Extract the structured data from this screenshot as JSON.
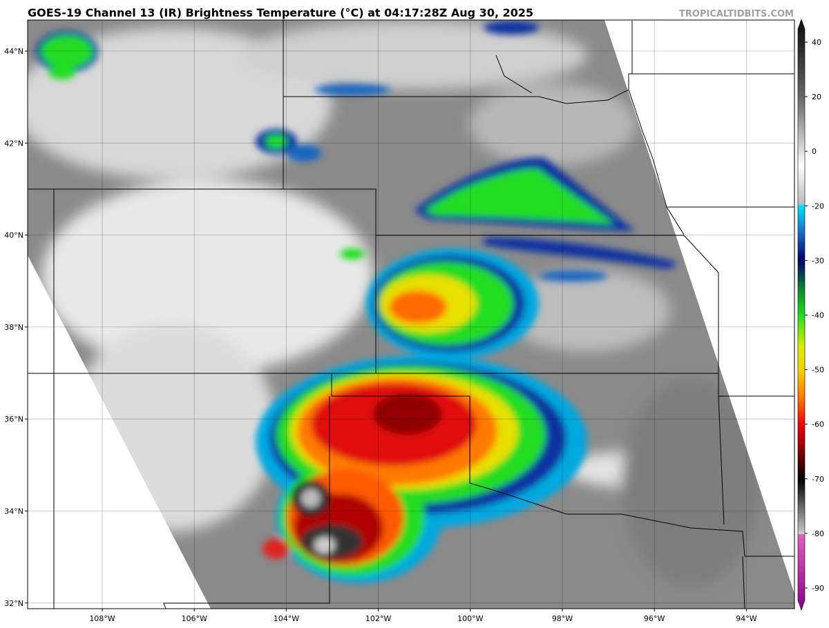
{
  "title": "GOES-19 Channel 13 (IR) Brightness Temperature (°C) at 04:17:28Z Aug 30, 2025",
  "credit": "TROPICALTIDBITS.COM",
  "map": {
    "lat_labels": [
      "44°N",
      "42°N",
      "40°N",
      "38°N",
      "36°N",
      "34°N",
      "32°N"
    ],
    "lon_labels": [
      "108°W",
      "106°W",
      "104°W",
      "102°W",
      "100°W",
      "98°W",
      "96°W",
      "94°W"
    ]
  },
  "colorbar": {
    "ticks": [
      40,
      20,
      0,
      -20,
      -30,
      -40,
      -50,
      -60,
      -70,
      -80,
      -90
    ]
  }
}
